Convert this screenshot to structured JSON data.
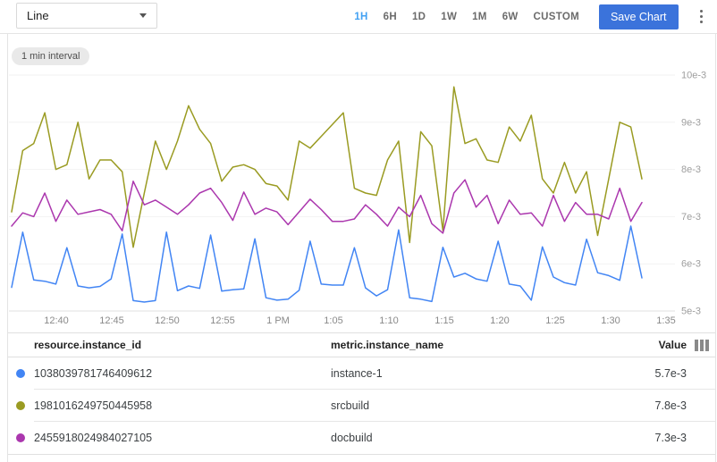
{
  "toolbar": {
    "chart_type": "Line",
    "time_ranges": [
      "1H",
      "6H",
      "1D",
      "1W",
      "1M",
      "6W",
      "CUSTOM"
    ],
    "selected_range": "1H",
    "save_label": "Save Chart"
  },
  "badge": "1 min interval",
  "colors": {
    "selected_range": "#42a1f3",
    "save_button_bg": "#3b73db",
    "series_blue": "#4285f4",
    "series_olive": "#9a9b22",
    "series_magenta": "#ab37ae",
    "gridline": "#f2f2f2",
    "axis_line": "#e0e0e0",
    "axis_text": "#9e9e9e"
  },
  "chart_data": {
    "type": "line",
    "x_times": [
      "12:36",
      "12:37",
      "12:38",
      "12:39",
      "12:40",
      "12:41",
      "12:42",
      "12:43",
      "12:44",
      "12:45",
      "12:46",
      "12:47",
      "12:48",
      "12:49",
      "12:50",
      "12:51",
      "12:52",
      "12:53",
      "12:54",
      "12:55",
      "12:56",
      "12:57",
      "12:58",
      "12:59",
      "1:00",
      "1:01",
      "1:02",
      "1:03",
      "1:04",
      "1:05",
      "1:06",
      "1:07",
      "1:08",
      "1:09",
      "1:10",
      "1:11",
      "1:12",
      "1:13",
      "1:14",
      "1:15",
      "1:16",
      "1:17",
      "1:18",
      "1:19",
      "1:20",
      "1:21",
      "1:22",
      "1:23",
      "1:24",
      "1:25",
      "1:26",
      "1:27",
      "1:28",
      "1:29",
      "1:30",
      "1:31",
      "1:32",
      "1:33"
    ],
    "x_tick_labels": [
      "12:40",
      "12:45",
      "12:50",
      "12:55",
      "1 PM",
      "1:05",
      "1:10",
      "1:15",
      "1:20",
      "1:25",
      "1:30",
      "1:35"
    ],
    "y_tick_labels": [
      "5e-3",
      "6e-3",
      "7e-3",
      "8e-3",
      "9e-3",
      "10e-3"
    ],
    "ylim_e3": [
      5,
      10
    ],
    "grid": "horizontal-only",
    "legend_position": "table-below",
    "series": [
      {
        "name": "instance-1",
        "color": "#4285f4",
        "values_e3": [
          5.5,
          6.67,
          5.66,
          5.63,
          5.57,
          6.34,
          5.53,
          5.49,
          5.52,
          5.68,
          6.63,
          5.22,
          5.19,
          5.22,
          6.67,
          5.43,
          5.53,
          5.48,
          6.61,
          5.42,
          5.45,
          5.47,
          6.53,
          5.28,
          5.23,
          5.25,
          5.44,
          6.48,
          5.57,
          5.55,
          5.55,
          6.34,
          5.49,
          5.32,
          5.45,
          6.72,
          5.28,
          5.25,
          5.2,
          6.35,
          5.72,
          5.8,
          5.68,
          5.63,
          6.48,
          5.57,
          5.53,
          5.23,
          6.36,
          5.72,
          5.6,
          5.55,
          6.52,
          5.81,
          5.75,
          5.65,
          6.8,
          5.7
        ]
      },
      {
        "name": "srcbuild",
        "color": "#9a9b22",
        "values_e3": [
          7.1,
          8.4,
          8.55,
          9.2,
          8.0,
          8.1,
          9.0,
          7.8,
          8.2,
          8.2,
          7.95,
          6.35,
          7.5,
          8.6,
          8.0,
          8.6,
          9.35,
          8.85,
          8.55,
          7.75,
          8.05,
          8.1,
          8.0,
          7.7,
          7.65,
          7.35,
          8.6,
          8.45,
          8.7,
          8.95,
          9.2,
          7.6,
          7.5,
          7.45,
          8.2,
          8.6,
          6.45,
          8.8,
          8.5,
          6.7,
          9.75,
          8.55,
          8.65,
          8.2,
          8.15,
          8.9,
          8.6,
          9.15,
          7.8,
          7.5,
          8.15,
          7.5,
          7.95,
          6.6,
          7.8,
          9.0,
          8.9,
          7.8
        ]
      },
      {
        "name": "docbuild",
        "color": "#ab37ae",
        "values_e3": [
          6.8,
          7.08,
          7.0,
          7.5,
          6.9,
          7.35,
          7.05,
          7.1,
          7.15,
          7.05,
          6.7,
          7.75,
          7.25,
          7.35,
          7.2,
          7.05,
          7.25,
          7.5,
          7.6,
          7.3,
          6.92,
          7.52,
          7.05,
          7.18,
          7.1,
          6.83,
          7.1,
          7.37,
          7.15,
          6.9,
          6.9,
          6.95,
          7.25,
          7.05,
          6.8,
          7.2,
          7.0,
          7.45,
          6.85,
          6.65,
          7.5,
          7.78,
          7.2,
          7.45,
          6.85,
          7.35,
          7.05,
          7.08,
          6.8,
          7.45,
          6.9,
          7.3,
          7.05,
          7.05,
          6.95,
          7.6,
          6.9,
          7.3
        ]
      }
    ]
  },
  "table": {
    "columns": [
      "resource.instance_id",
      "metric.instance_name",
      "Value"
    ],
    "rows": [
      {
        "instance_id": "1038039781746409612",
        "instance_name": "instance-1",
        "value": "5.7e-3",
        "color": "#4285f4"
      },
      {
        "instance_id": "1981016249750445958",
        "instance_name": "srcbuild",
        "value": "7.8e-3",
        "color": "#9a9b22"
      },
      {
        "instance_id": "2455918024984027105",
        "instance_name": "docbuild",
        "value": "7.3e-3",
        "color": "#ab37ae"
      }
    ]
  }
}
